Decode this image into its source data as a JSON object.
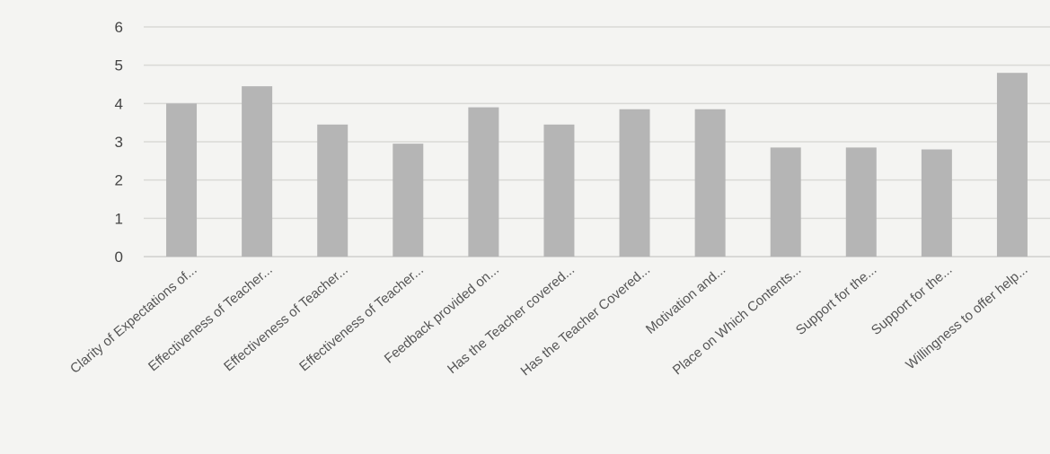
{
  "chart_data": {
    "type": "bar",
    "title": "",
    "xlabel": "",
    "ylabel": "",
    "ylim": [
      0,
      6
    ],
    "yticks": [
      0,
      1,
      2,
      3,
      4,
      5,
      6
    ],
    "grid": true,
    "categories": [
      "Clarity of Expectations of...",
      "Effectiveness of Teacher...",
      "Effectiveness of Teacher...",
      "Effectiveness of Teacher...",
      "Feedback provided on...",
      "Has the Teacher covered...",
      "Has the Teacher Covered...",
      "Motivation and...",
      "Place on Which Contents...",
      "Support for the...",
      "Support for the...",
      "Willingness to offer help..."
    ],
    "values": [
      4.0,
      4.45,
      3.45,
      2.95,
      3.9,
      3.45,
      3.85,
      3.85,
      2.85,
      2.85,
      2.8,
      4.8
    ],
    "bar_color": "#b5b5b5"
  }
}
